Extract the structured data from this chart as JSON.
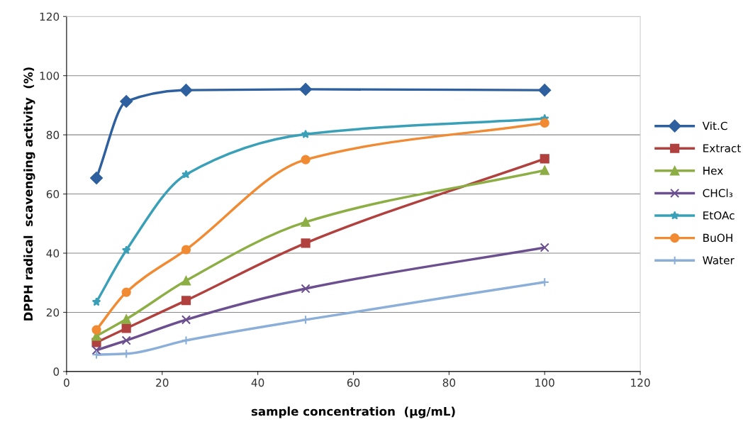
{
  "chart_data": {
    "type": "line",
    "xlabel": "sample concentration  (μg/mL)",
    "ylabel": "DPPH radical  scavenging activity  (%)",
    "x": [
      6.25,
      12.5,
      25,
      50,
      100
    ],
    "series": [
      {
        "name": "Vit.C",
        "color": "#2e5f9e",
        "marker": "diamond",
        "values": [
          65.4,
          91.3,
          95.1,
          95.4,
          95.1
        ]
      },
      {
        "name": "Extract",
        "color": "#b0413e",
        "marker": "square",
        "values": [
          9.8,
          14.6,
          24.0,
          43.4,
          71.9
        ]
      },
      {
        "name": "Hex",
        "color": "#8cae45",
        "marker": "triangle",
        "values": [
          12.0,
          17.7,
          30.7,
          50.5,
          68.0
        ]
      },
      {
        "name": "CHCl₃",
        "color": "#6b4f8e",
        "marker": "cross",
        "values": [
          7.2,
          10.5,
          17.5,
          28.0,
          41.9
        ]
      },
      {
        "name": "EtOAc",
        "color": "#3aa0b8",
        "marker": "star",
        "values": [
          23.5,
          41.0,
          66.6,
          80.2,
          85.5
        ]
      },
      {
        "name": "BuOH",
        "color": "#f08a33",
        "marker": "circle",
        "values": [
          14.1,
          26.8,
          41.2,
          71.6,
          84.0
        ]
      },
      {
        "name": "Water",
        "color": "#8bafd9",
        "marker": "plus",
        "values": [
          5.7,
          6.0,
          10.5,
          17.5,
          30.2
        ]
      }
    ],
    "xlim": [
      0,
      120
    ],
    "xticks": [
      0,
      20,
      40,
      60,
      80,
      100,
      120
    ],
    "ylim": [
      0,
      120
    ],
    "yticks": [
      0,
      20,
      40,
      60,
      80,
      100,
      120
    ],
    "grid": "y",
    "legend": "right",
    "line_style": "solid"
  }
}
